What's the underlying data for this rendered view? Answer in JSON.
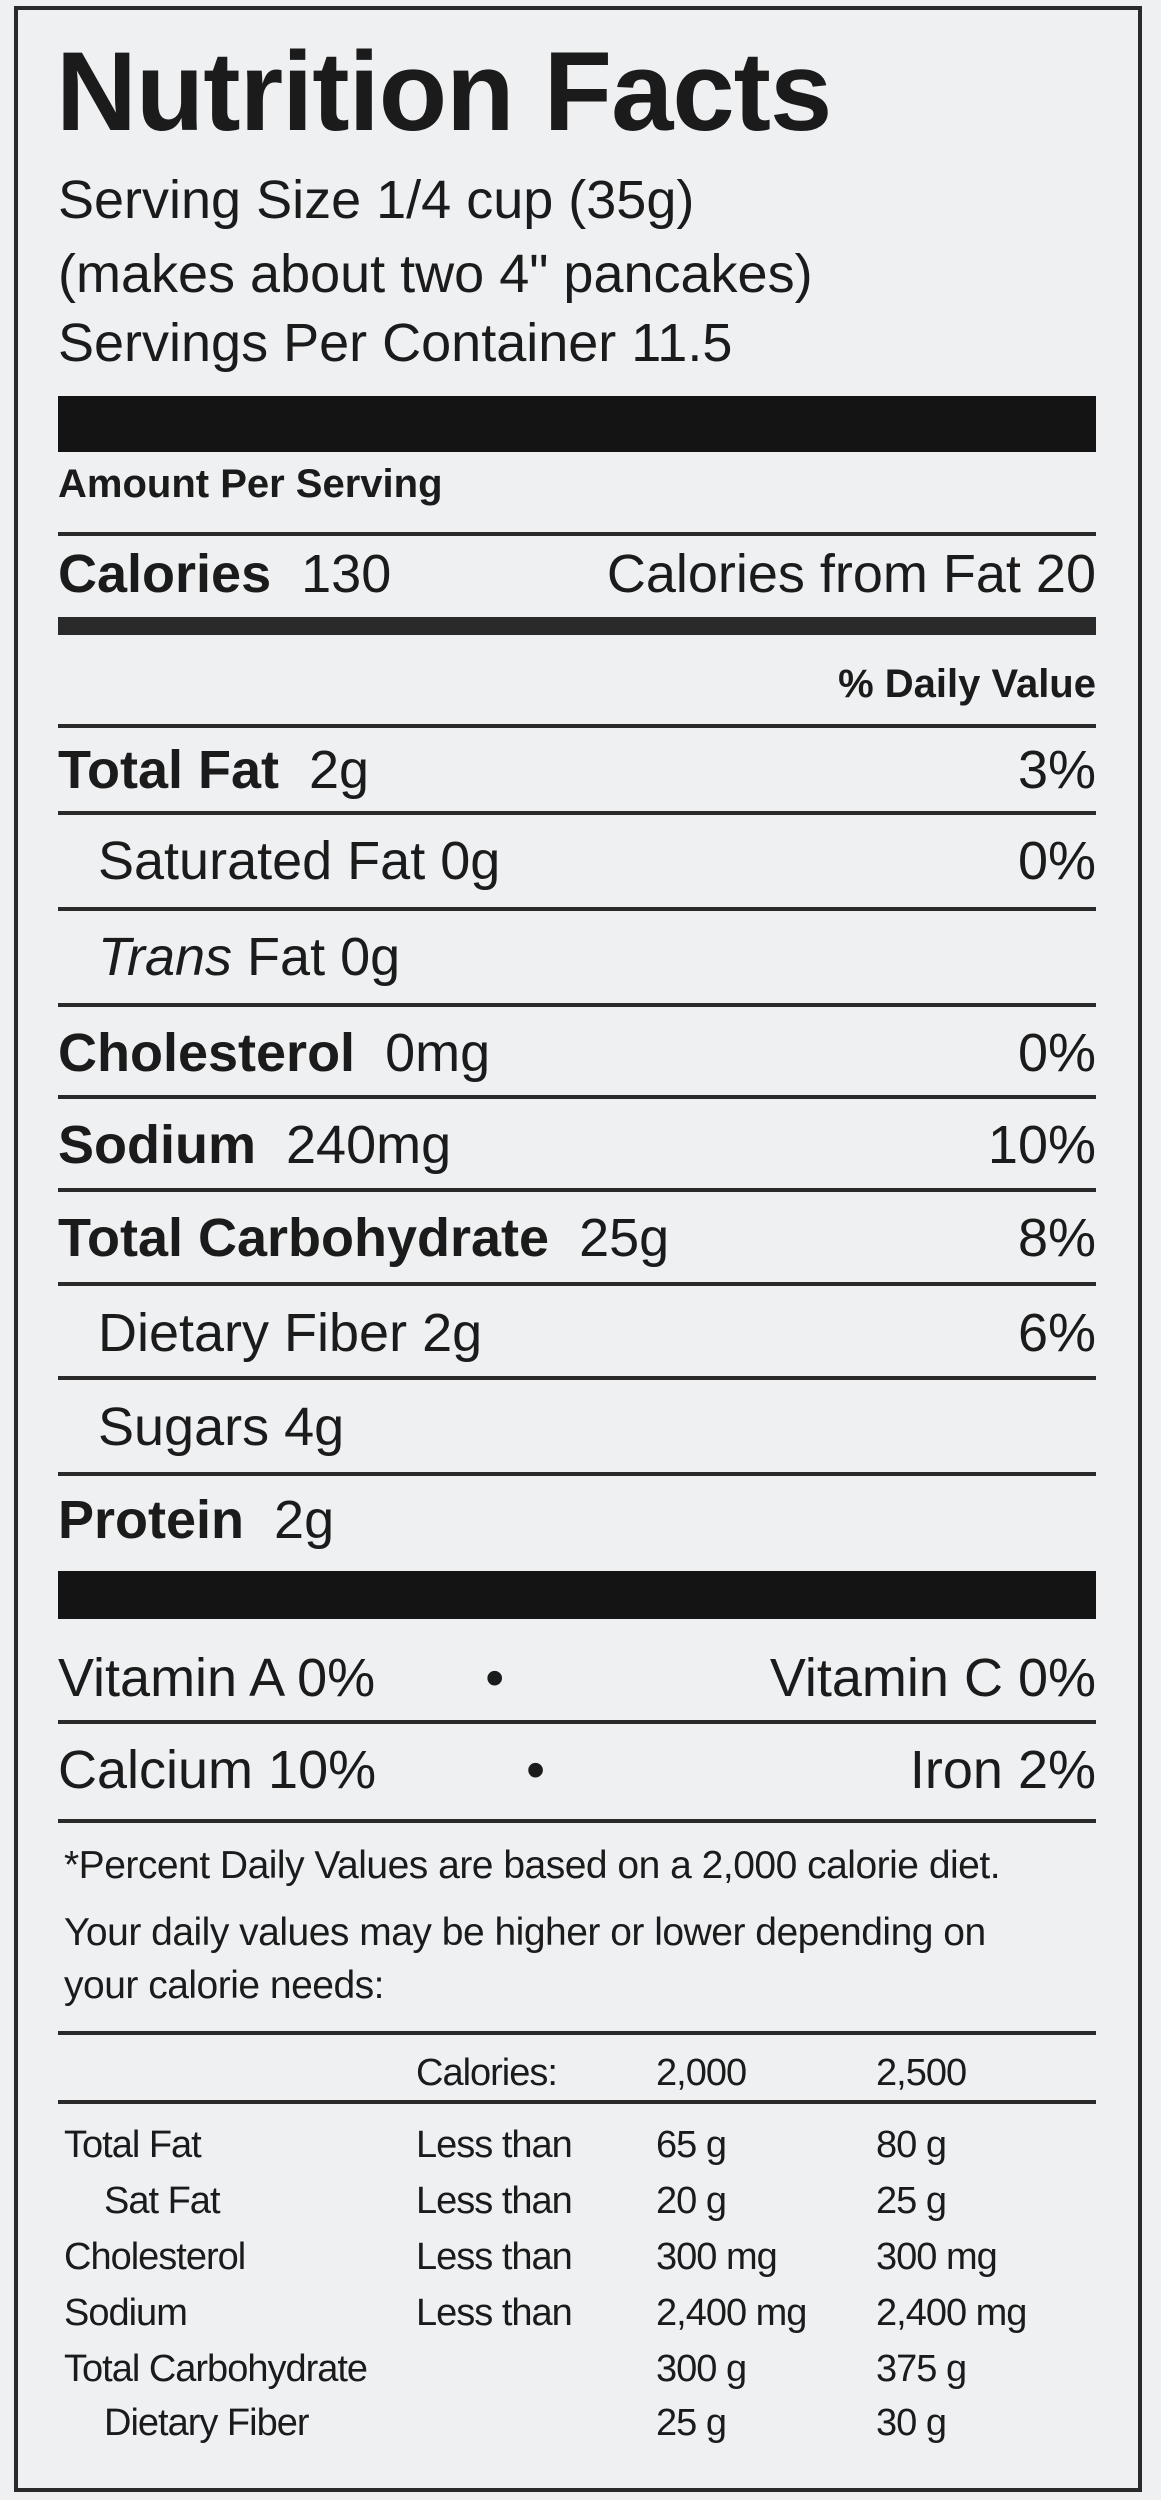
{
  "title": "Nutrition Facts",
  "serving": {
    "size": "Serving Size 1/4 cup (35g)",
    "note": "(makes about two 4\" pancakes)",
    "per_container": "Servings Per Container 11.5"
  },
  "amount_per_serving": "Amount Per Serving",
  "calories": {
    "label": "Calories",
    "value": "130",
    "from_fat": "Calories from Fat 20"
  },
  "daily_value_header": "% Daily Value",
  "nutrients": [
    {
      "name": "Total Fat",
      "amount": "2g",
      "dv": "3%"
    },
    {
      "name": "Saturated Fat",
      "amount": "0g",
      "dv": "0%"
    },
    {
      "name": "Trans",
      "name_rest": "Fat 0g",
      "dv": ""
    },
    {
      "name": "Cholesterol",
      "amount": "0mg",
      "dv": "0%"
    },
    {
      "name": "Sodium",
      "amount": "240mg",
      "dv": "10%"
    },
    {
      "name": "Total Carbohydrate",
      "amount": "25g",
      "dv": "8%"
    },
    {
      "name": "Dietary Fiber",
      "amount": "2g",
      "dv": "6%"
    },
    {
      "name": "Sugars",
      "amount": "4g",
      "dv": ""
    },
    {
      "name": "Protein",
      "amount": "2g",
      "dv": ""
    }
  ],
  "vitamins": [
    {
      "left": "Vitamin A 0%",
      "sep": "•",
      "right": "Vitamin C 0%"
    },
    {
      "left": "Calcium 10%",
      "sep": "•",
      "right": "Iron 2%"
    }
  ],
  "footnote": [
    "*Percent Daily Values are based on a 2,000 calorie diet.",
    "Your daily values may be higher or lower depending on",
    "your calorie needs:"
  ],
  "dv_table": {
    "header": [
      "",
      "Calories:",
      "2,000",
      "2,500"
    ],
    "rows": [
      [
        "Total Fat",
        "Less than",
        "65 g",
        "80 g"
      ],
      [
        "Sat Fat",
        "Less than",
        "20 g",
        "25 g"
      ],
      [
        "Cholesterol",
        "Less than",
        "300 mg",
        "300 mg"
      ],
      [
        "Sodium",
        "Less than",
        "2,400 mg",
        "2,400 mg"
      ],
      [
        "Total Carbohydrate",
        "",
        "300 g",
        "375 g"
      ],
      [
        "Dietary Fiber",
        "",
        "25 g",
        "30 g"
      ]
    ]
  }
}
